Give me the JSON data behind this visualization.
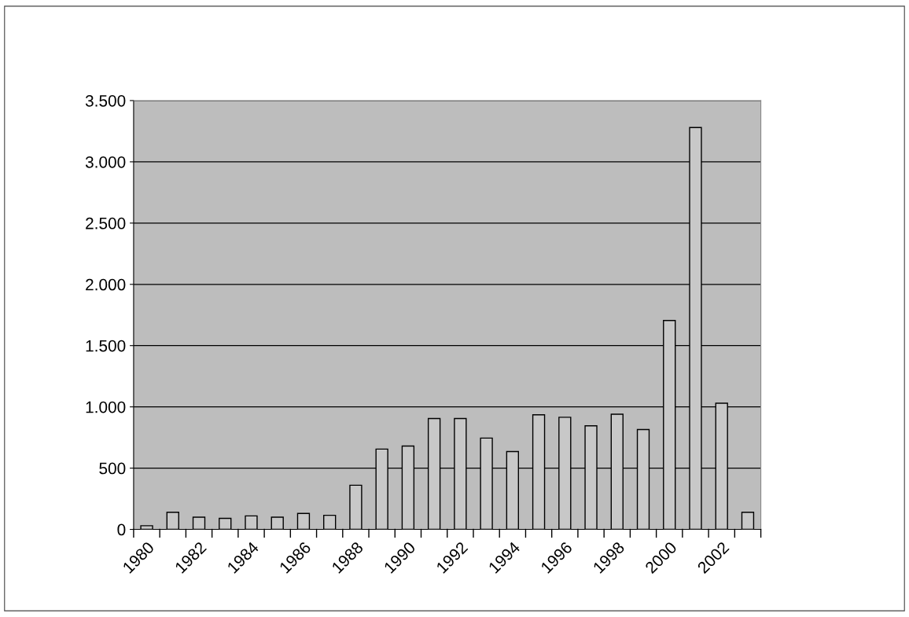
{
  "chart_data": {
    "type": "bar",
    "categories": [
      "1980",
      null,
      "1982",
      null,
      "1984",
      null,
      "1986",
      null,
      "1988",
      null,
      "1990",
      null,
      "1992",
      null,
      "1994",
      null,
      "1996",
      null,
      "1998",
      null,
      "2000",
      null,
      "2002",
      null
    ],
    "values": [
      30,
      140,
      100,
      90,
      110,
      100,
      130,
      115,
      360,
      655,
      680,
      905,
      905,
      745,
      635,
      935,
      915,
      845,
      940,
      815,
      1705,
      3280,
      1030,
      140
    ],
    "color": "#c8c8c8",
    "ylim": [
      0,
      3500
    ],
    "yticks": [
      0,
      500,
      {
        "value": 1000,
        "label": "1.000"
      },
      {
        "value": 1500,
        "label": "1.500"
      },
      {
        "value": 2000,
        "label": "2.000"
      },
      {
        "value": 2500,
        "label": "2.500"
      },
      {
        "value": 3000,
        "label": "3.000"
      },
      {
        "value": 3500,
        "label": "3.500"
      }
    ],
    "grid": "y"
  }
}
